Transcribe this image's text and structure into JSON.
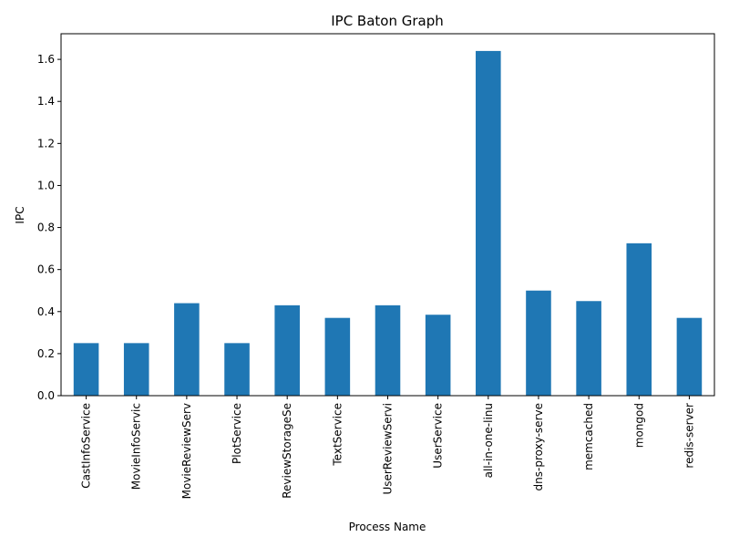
{
  "chart_data": {
    "type": "bar",
    "title": "IPC Baton Graph",
    "xlabel": "Process Name",
    "ylabel": "IPC",
    "categories": [
      "CastInfoService",
      "MovieInfoServic",
      "MovieReviewServ",
      "PlotService",
      "ReviewStorageSe",
      "TextService",
      "UserReviewServi",
      "UserService",
      "all-in-one-linu",
      "dns-proxy-serve",
      "memcached",
      "mongod",
      "redis-server"
    ],
    "values": [
      0.25,
      0.25,
      0.44,
      0.25,
      0.43,
      0.37,
      0.43,
      0.385,
      1.64,
      0.5,
      0.45,
      0.725,
      0.37
    ],
    "ylim": [
      0,
      1.722
    ],
    "yticks": [
      0.0,
      0.2,
      0.4,
      0.6,
      0.8,
      1.0,
      1.2,
      1.4,
      1.6
    ],
    "ytick_labels": [
      "0.0",
      "0.2",
      "0.4",
      "0.6",
      "0.8",
      "1.0",
      "1.2",
      "1.4",
      "1.6"
    ],
    "bar_color": "#1f77b4",
    "grid": false,
    "legend": "none"
  }
}
